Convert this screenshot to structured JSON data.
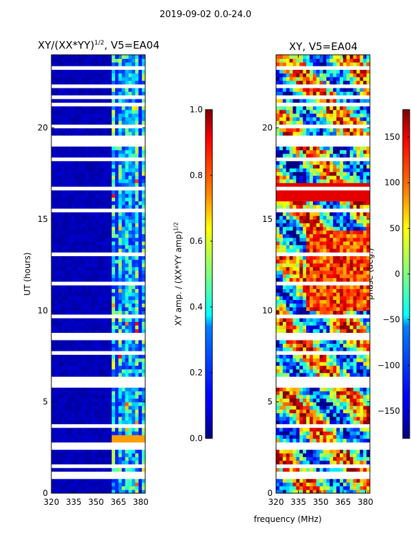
{
  "figure": {
    "suptitle": "2019-09-02 0.0-24.0",
    "xlabel": "frequency (MHz)"
  },
  "chart_data": [
    {
      "type": "heatmap",
      "title_text": "XY/(XX*YY)",
      "title_exponent": "1/2",
      "title_suffix": ", V5=EA04",
      "xlabel": "frequency (MHz)",
      "ylabel": "UT (hours)",
      "xlim": [
        320,
        383
      ],
      "ylim": [
        0,
        24
      ],
      "xticks": [
        320,
        335,
        350,
        365,
        380
      ],
      "yticks": [
        0,
        5,
        10,
        15,
        20
      ],
      "colorbar": {
        "label": "XY amp. / (XX*YY amp)",
        "label_exponent": "1/2",
        "range": [
          0.0,
          1.0
        ],
        "ticks": [
          "0.0",
          "0.2",
          "0.4",
          "0.6",
          "0.8",
          "1.0"
        ],
        "colormap": "jet"
      },
      "notes": "Mostly low amplitude (~0.05) below 360 MHz; bright channel structure between ~360 and 380 MHz; horizontal white gaps indicate flagged time ranges."
    },
    {
      "type": "heatmap",
      "title": "XY, V5=EA04",
      "xlabel": "frequency (MHz)",
      "ylabel": "",
      "xlim": [
        320,
        383
      ],
      "ylim": [
        0,
        24
      ],
      "xticks": [
        320,
        335,
        350,
        365,
        380
      ],
      "yticks": [
        0,
        5,
        10,
        15,
        20
      ],
      "colorbar": {
        "label": "phase (deg.)",
        "range": [
          -180,
          180
        ],
        "ticks": [
          "−150",
          "−100",
          "−50",
          "0",
          "50",
          "100",
          "150"
        ],
        "colormap": "jet"
      },
      "notes": "Phase spans the full range with noisy striped structure; horizontal white gaps indicate flagged time ranges."
    }
  ],
  "colors": {
    "background": "#ffffff",
    "gap": "#ffffff",
    "jet_low": "#00007f",
    "jet_high": "#7f0000"
  }
}
